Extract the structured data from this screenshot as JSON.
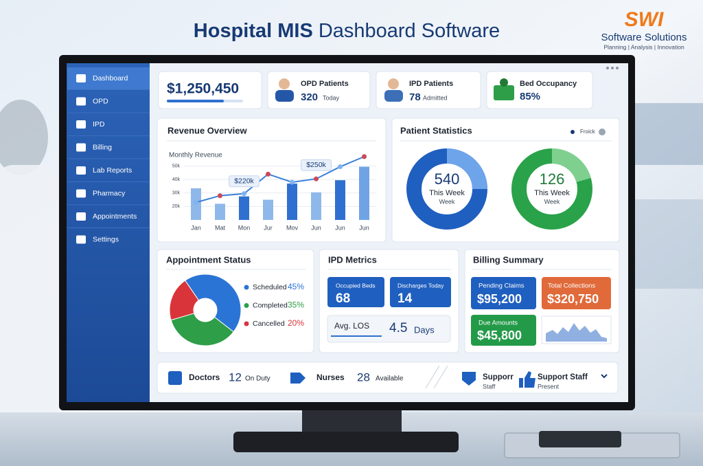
{
  "header": {
    "title_strong": "Hospital MIS",
    "title_rest": "Dashboard Software"
  },
  "logo": {
    "mark": "SWI",
    "name": "Software Solutions",
    "tagline": "Planning | Analysis | Innovation"
  },
  "sidebar": [
    "Dashboard",
    "OPD",
    "IPD",
    "Billing",
    "Lab Reports",
    "Pharmacy",
    "Appointments",
    "Settings"
  ],
  "kpis": [
    {
      "value": "$1,250,450"
    },
    {
      "label": "OPD Patients",
      "value": "320",
      "note": "Today"
    },
    {
      "label": "IPD Patients",
      "value": "78",
      "note": "Admitted"
    },
    {
      "label": "Bed Occupancy",
      "value": "85%"
    }
  ],
  "chart_data": [
    {
      "type": "bar",
      "title": "Revenue Overview",
      "subtitle": "Monthly Revenue",
      "categories": [
        "Jan",
        "Mat",
        "Mon",
        "Jur",
        "Mov",
        "Jun",
        "Jun",
        "Jun"
      ],
      "values": [
        33.5,
        22,
        27.5,
        25,
        37,
        30.5,
        39.5,
        49.5
      ],
      "colors": [
        "#8fb8ea",
        "#8fb8ea",
        "#2f6fd0",
        "#8fb8ea",
        "#2f6fd0",
        "#8fb8ea",
        "#2f6fd0",
        "#6fa3e6"
      ],
      "line": {
        "values": [
          23,
          28,
          29.5,
          44,
          38,
          40.5,
          49.5,
          57
        ],
        "color": "#3b7fd9"
      },
      "annotations": [
        "$220k",
        "$250k"
      ],
      "ylim": [
        10,
        60
      ],
      "yticks": [
        {
          "value": 20,
          "label": "20k"
        },
        {
          "value": 30,
          "label": "30k"
        },
        {
          "value": 40,
          "label": "40k"
        },
        {
          "value": 50,
          "label": "50k"
        }
      ],
      "grid": true
    },
    {
      "type": "pie",
      "title": "Appointment Status",
      "categories": [
        "Scheduled",
        "Completed",
        "Cancelled"
      ],
      "values": [
        45,
        35,
        20
      ],
      "value_labels": [
        "45%",
        "35%",
        "20%"
      ],
      "colors": [
        "#2a74d6",
        "#2e9e48",
        "#d9343a"
      ]
    }
  ],
  "patient_statistics": {
    "title": "Patient Statistics",
    "legend": "Froick",
    "rings": [
      {
        "value": "540",
        "line1": "This Week",
        "line2": "Week"
      },
      {
        "value": "126",
        "line1": "This Week",
        "line2": "Week"
      }
    ]
  },
  "ipd_metrics": {
    "title": "IPD Metrics",
    "tiles": [
      {
        "label": "Occupied Beds",
        "value": "68"
      },
      {
        "label": "Discharges Today",
        "value": "14"
      }
    ],
    "avg_los": {
      "label": "Avg. LOS",
      "value": "4.5",
      "unit": "Days"
    }
  },
  "billing": {
    "title": "Billing Summary",
    "tiles": [
      {
        "label": "Pending Claims",
        "value": "$95,200"
      },
      {
        "label": "Total Collections",
        "value": "$320,750"
      },
      {
        "label": "Due Amounts",
        "value": "$45,800"
      }
    ]
  },
  "footer": [
    {
      "label": "Doctors",
      "value": "12",
      "note": "On Duty"
    },
    {
      "label": "Nurses",
      "value": "28",
      "note": "Available"
    },
    {
      "label": "Supporr",
      "note": "Staff"
    },
    {
      "label": "Support Staff",
      "note": "Present"
    }
  ]
}
